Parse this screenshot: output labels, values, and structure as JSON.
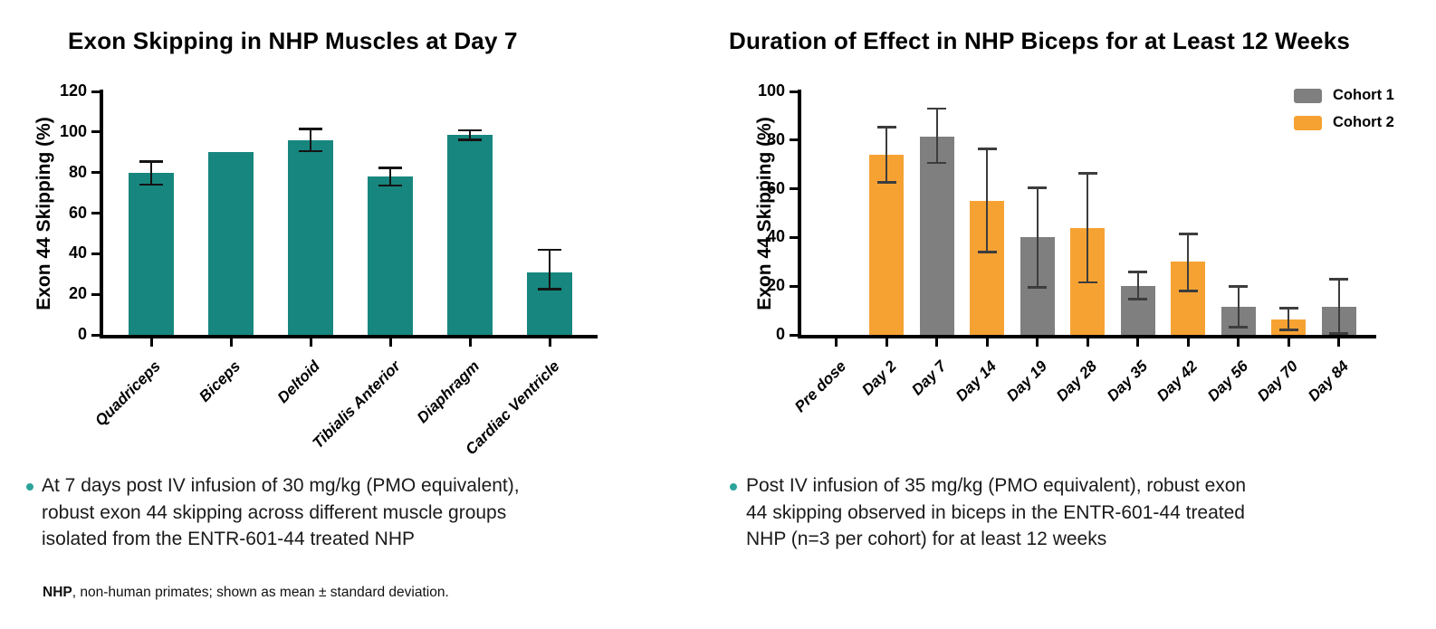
{
  "chart_data": [
    {
      "type": "bar",
      "title": "Exon Skipping in NHP Muscles at Day 7",
      "ylabel": "Exon 44 Skipping (%)",
      "categories": [
        "Quadriceps",
        "Biceps",
        "Deltoid",
        "Tibialis Anterior",
        "Diaphragm",
        "Cardiac Ventricle"
      ],
      "values": [
        80,
        90,
        96,
        78,
        98.5,
        31
      ],
      "errors_plus": [
        5.5,
        null,
        5.5,
        4.5,
        2.5,
        11
      ],
      "errors_minus": [
        6,
        null,
        5.5,
        4.5,
        2.5,
        8.5
      ],
      "bar_color": "#17867E",
      "error_bar_color": "#141414",
      "ylim": [
        0,
        120
      ],
      "yticks": [
        0,
        20,
        40,
        60,
        80,
        100,
        120
      ],
      "grid": "off",
      "legend": null
    },
    {
      "type": "bar",
      "title": "Duration of Effect in NHP Biceps for at Least 12 Weeks",
      "ylabel": "Exon 44 Skipping (%)",
      "categories": [
        "Pre dose",
        "Day 2",
        "Day 7",
        "Day 14",
        "Day 19",
        "Day 28",
        "Day 35",
        "Day 42",
        "Day 56",
        "Day 70",
        "Day 84"
      ],
      "series": [
        {
          "name": "Cohort 1",
          "color": "#7F7F7F"
        },
        {
          "name": "Cohort 2",
          "color": "#F6A233"
        }
      ],
      "series_index": [
        null,
        1,
        0,
        1,
        0,
        1,
        0,
        1,
        0,
        1,
        0
      ],
      "values": [
        null,
        74,
        81.5,
        55,
        40,
        44,
        20,
        30,
        11.5,
        6.5,
        11.5
      ],
      "errors_plus": [
        null,
        11.5,
        11.5,
        21.5,
        20.5,
        22.5,
        6,
        11.5,
        8.5,
        4.5,
        11.5
      ],
      "errors_minus": [
        null,
        11.5,
        11,
        21,
        20.5,
        22.5,
        5.5,
        12,
        8.5,
        4.5,
        11
      ],
      "error_bar_color": "#3D3D3D",
      "ylim": [
        0,
        100
      ],
      "yticks": [
        0,
        20,
        40,
        60,
        80,
        100
      ],
      "grid": "off",
      "legend_position": "top-right"
    }
  ],
  "bullets": [
    {
      "text": "At 7 days post IV infusion of 30 mg/kg (PMO equivalent),\nrobust exon 44 skipping across different muscle groups\nisolated from the ENTR-601-44 treated NHP"
    },
    {
      "text": "Post IV infusion of 35 mg/kg (PMO equivalent), robust exon\n44 skipping observed in biceps in the ENTR-601-44 treated\nNHP (n=3 per cohort) for at least 12 weeks"
    }
  ],
  "footnote": {
    "term": "NHP",
    "text": ", non-human primates; shown as mean ± standard deviation."
  },
  "colors": {
    "teal_bar": "#17867E",
    "orange_bar": "#F6A233",
    "gray_bar": "#7F7F7F",
    "bullet": "#2BA39A",
    "axis": "#000000"
  }
}
